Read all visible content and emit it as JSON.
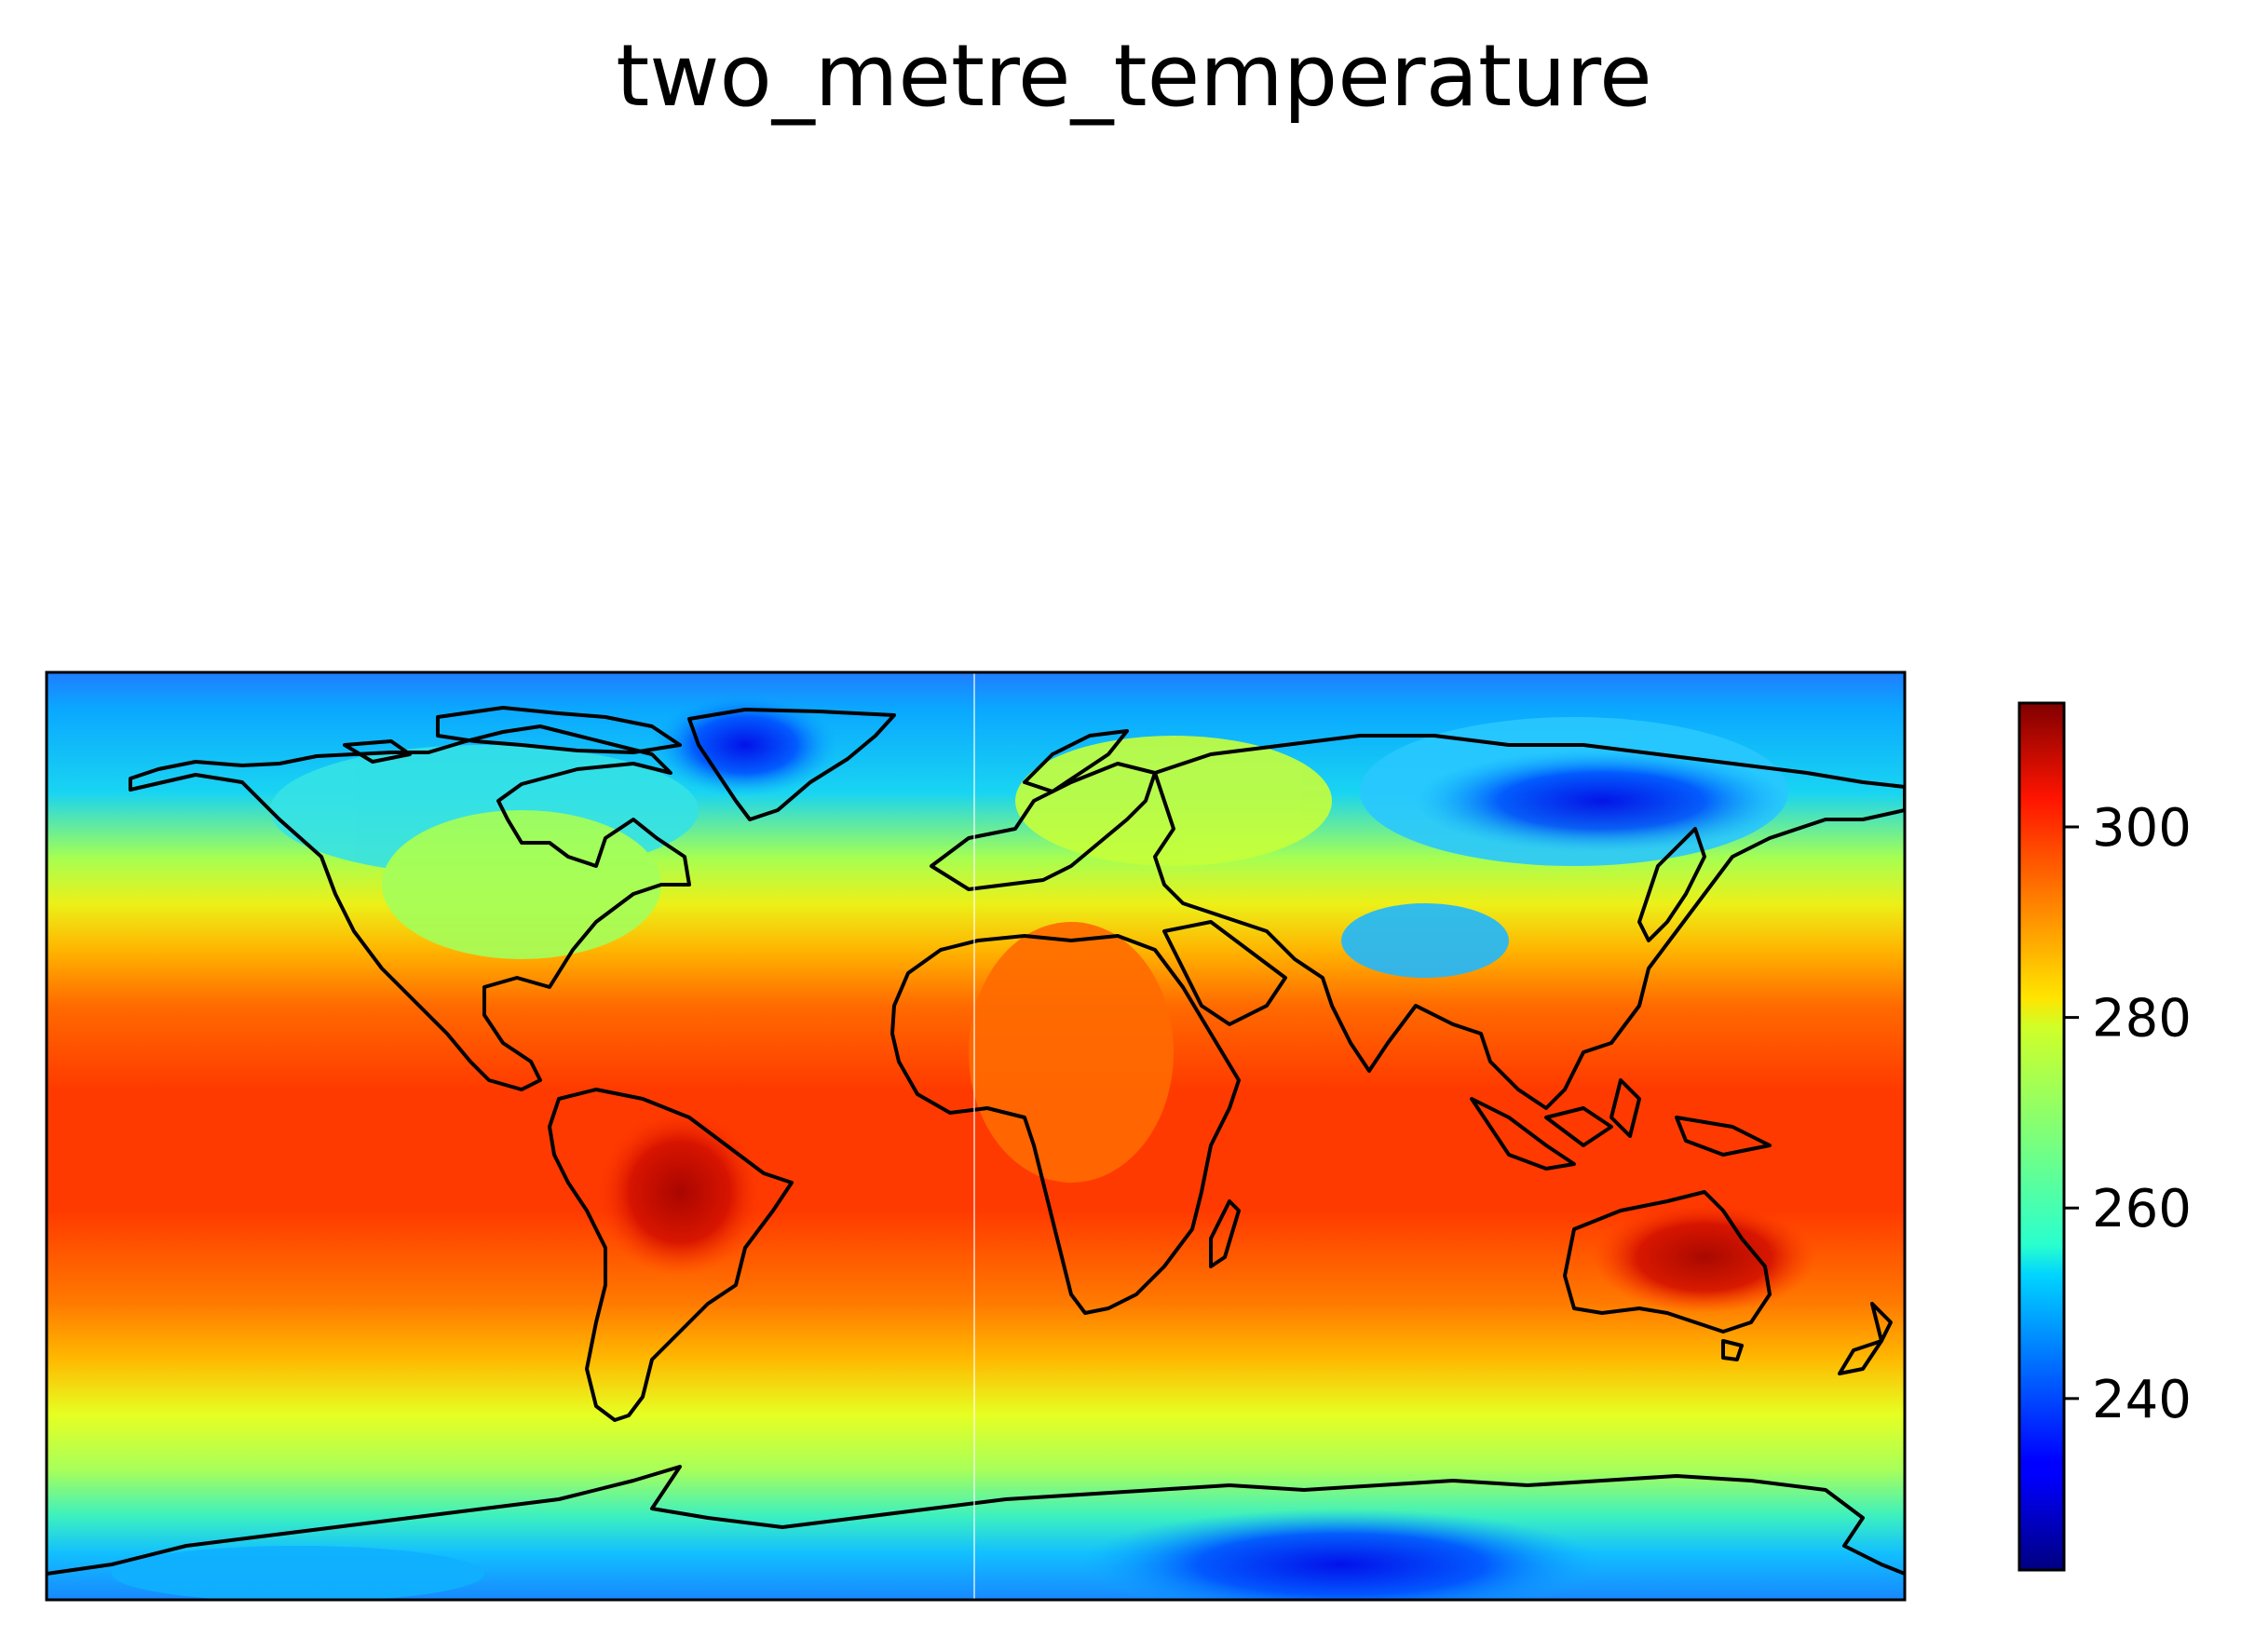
{
  "title": "two_metre_temperature",
  "colorbar": {
    "ticks": [
      240,
      260,
      280,
      300
    ],
    "tick_labels": [
      "240",
      "260",
      "280",
      "300"
    ],
    "vmin": 222,
    "vmax": 313
  },
  "colors": {
    "coastline": "#000000",
    "colormap": "jet"
  }
}
